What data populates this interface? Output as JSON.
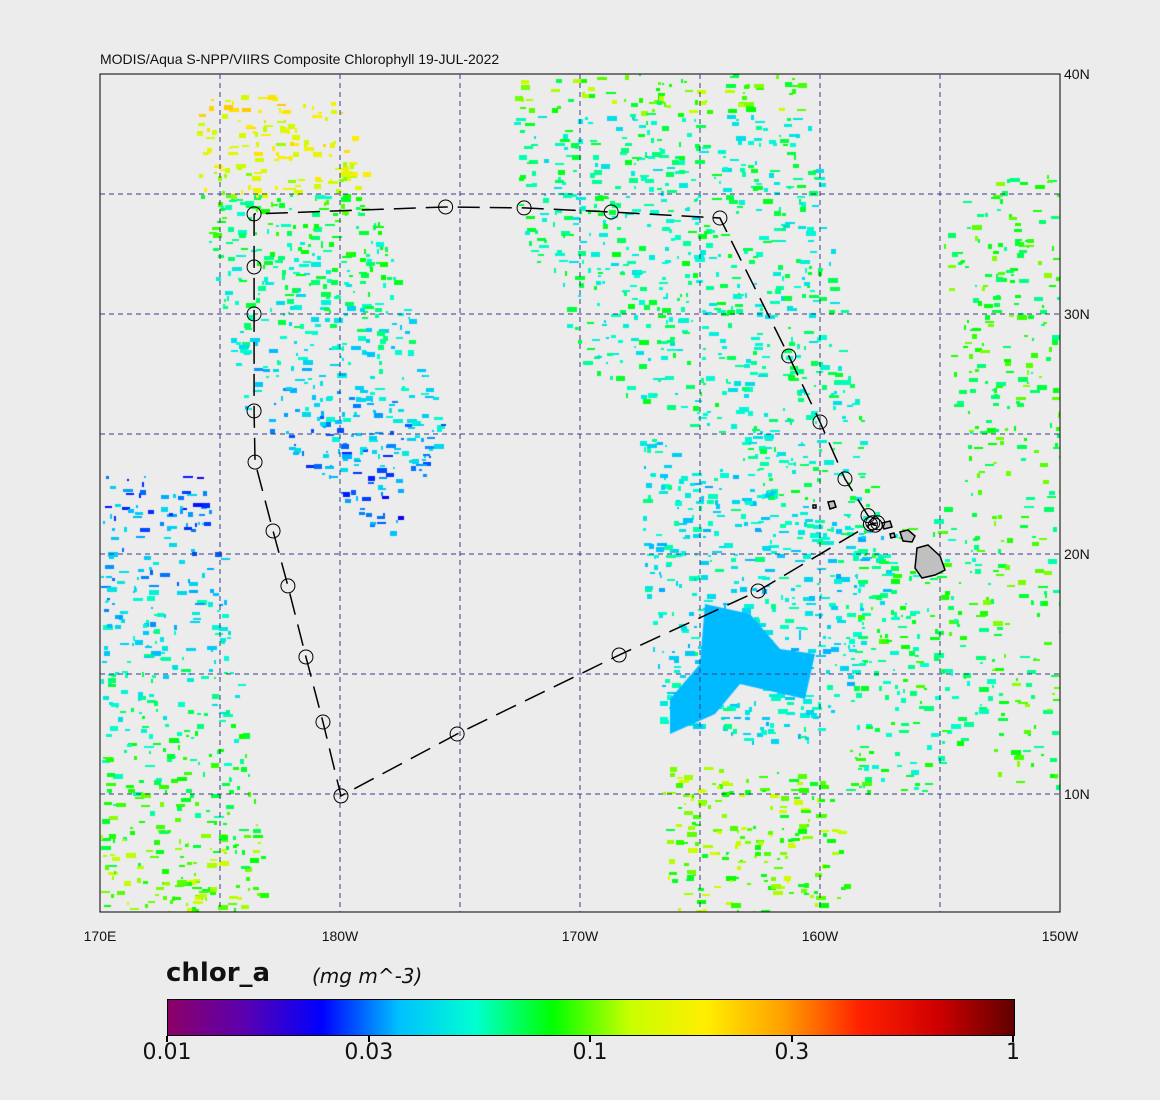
{
  "title": "MODIS/Aqua S-NPP/VIIRS Composite Chlorophyll 19-JUL-2022",
  "map": {
    "lon_range": [
      "170E",
      "150W"
    ],
    "lat_range_deg": [
      5.1,
      40
    ],
    "grid_lon_step_deg": 5,
    "grid_lat_step_deg": 5,
    "lon_labels": [
      "170E",
      "180W",
      "170W",
      "160W",
      "150W"
    ],
    "lat_labels": [
      "40N",
      "30N",
      "20N",
      "10N"
    ],
    "background_color": "#ececec",
    "grid_color": "#3a3a8a",
    "land_color": "#c0c0c0",
    "track": {
      "style": "dashed black line with circle markers",
      "points_lon_lat": [
        [
          176.42,
          34.17
        ],
        [
          176.42,
          31.96
        ],
        [
          176.42,
          30.0
        ],
        [
          176.42,
          25.96
        ],
        [
          176.46,
          23.83
        ],
        [
          177.21,
          20.96
        ],
        [
          177.83,
          18.67
        ],
        [
          178.58,
          15.71
        ],
        [
          179.29,
          13.0
        ],
        [
          -179.96,
          9.92
        ],
        [
          -175.12,
          12.5
        ],
        [
          -168.37,
          15.79
        ],
        [
          -162.58,
          18.46
        ],
        [
          -157.8,
          21.3
        ],
        [
          -157.7,
          21.2
        ],
        [
          -157.9,
          21.25
        ],
        [
          -157.6,
          21.3
        ],
        [
          -158.0,
          21.6
        ],
        [
          -158.96,
          23.13
        ],
        [
          -160.0,
          25.5
        ],
        [
          -161.3,
          28.25
        ],
        [
          -164.17,
          34.0
        ],
        [
          -168.7,
          34.25
        ],
        [
          -172.33,
          34.42
        ],
        [
          -175.6,
          34.46
        ]
      ]
    }
  },
  "colorbar": {
    "name": "chlor_a",
    "units": "(mg m^-3)",
    "scale": "log",
    "range": [
      0.01,
      1
    ],
    "ticks": [
      "0.01",
      "0.03",
      "0.1",
      "0.3",
      "1"
    ],
    "tick_values": [
      0.01,
      0.03,
      0.1,
      0.3,
      1
    ],
    "colors": [
      "#8b0066",
      "#5a00b0",
      "#0000ff",
      "#00c0ff",
      "#00ffd0",
      "#00ff00",
      "#c8ff00",
      "#ffee00",
      "#ffa000",
      "#ff2000",
      "#d00000",
      "#600000"
    ]
  }
}
